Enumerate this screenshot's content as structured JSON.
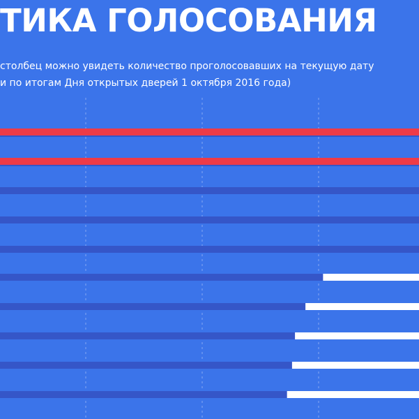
{
  "header": {
    "title": "ТИКА ГОЛОСОВАНИЯ",
    "subtitle_line1": "столбец можно увидеть количество проголосовавших на текущую дату",
    "subtitle_line2": "и по итогам Дня открытых дверей 1 октября 2016 года)"
  },
  "colors": {
    "background": "#3b74ea",
    "current_bar": "#ee3b47",
    "previous_bar": "#3556c8",
    "result_bar": "#ffffff",
    "gridline": "#9bb6f4"
  },
  "chart_data": {
    "type": "bar",
    "orientation": "horizontal",
    "grid": true,
    "value_range_visible": [
      0,
      1
    ],
    "rows": [
      {
        "current": 1.0,
        "previous": null
      },
      {
        "current": 1.0,
        "previous": null
      },
      {
        "current": 0.0,
        "previous": 1.0
      },
      {
        "current": 0.0,
        "previous": 1.0
      },
      {
        "current": 0.0,
        "previous": 1.0
      },
      {
        "current": 0.229,
        "previous": 0.771
      },
      {
        "current": 0.271,
        "previous": 0.729
      },
      {
        "current": 0.296,
        "previous": 0.704
      },
      {
        "current": 0.303,
        "previous": 0.697
      },
      {
        "current": 0.315,
        "previous": 0.685
      }
    ]
  }
}
